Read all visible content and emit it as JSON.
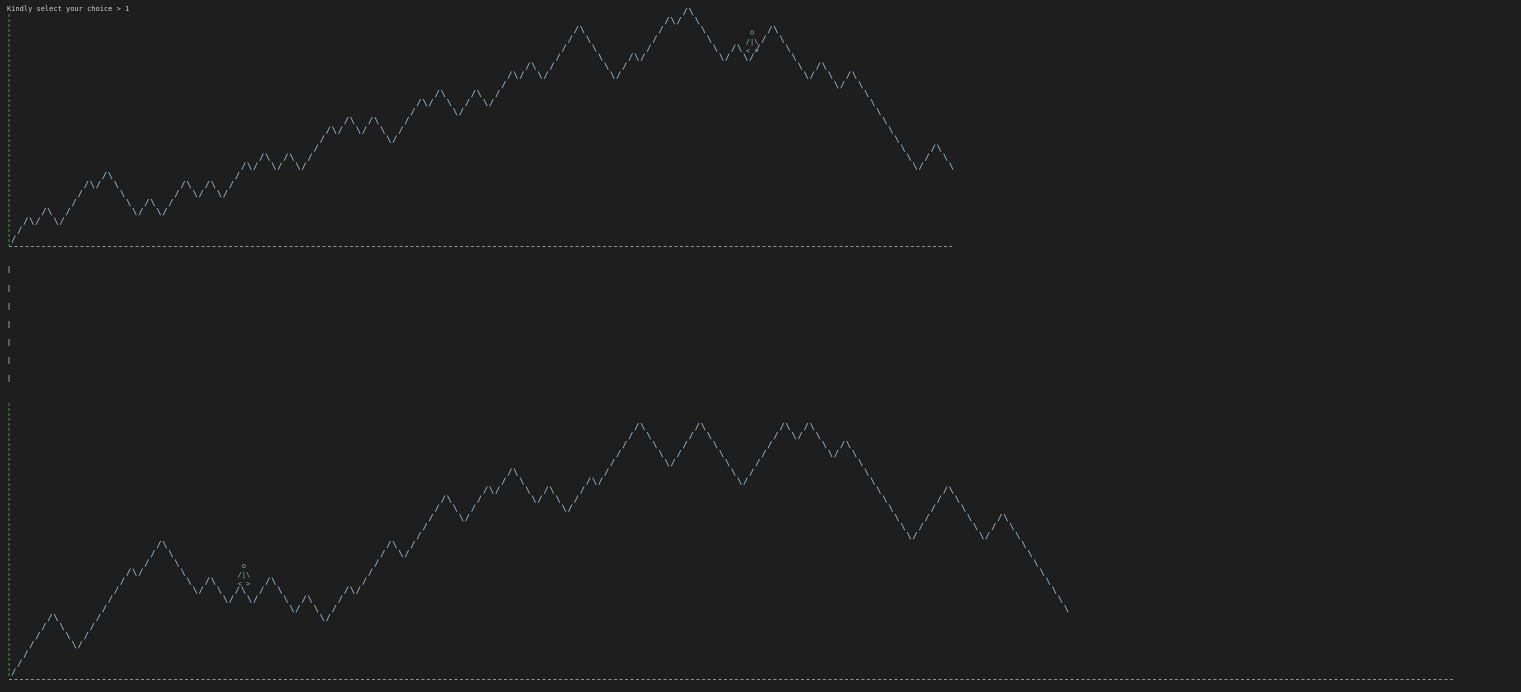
{
  "terminal": {
    "prompt_text": "Kindly select your choice > 1",
    "background": "#1e1e1e",
    "foreground": "#cccccc",
    "stroke_color": "#a6c0d6",
    "axis_color": "#5a8a52"
  },
  "mountain_top": {
    "steps": [
      1,
      1,
      1,
      -1,
      1,
      1,
      -1,
      -1,
      1,
      1,
      1,
      1,
      1,
      -1,
      1,
      1,
      -1,
      -1,
      -1,
      -1,
      -1,
      1,
      1,
      -1,
      -1,
      1,
      1,
      1,
      1,
      -1,
      -1,
      1,
      1,
      -1,
      -1,
      1,
      1,
      1,
      1,
      -1,
      1,
      1,
      -1,
      -1,
      1,
      1,
      -1,
      -1,
      1,
      1,
      1,
      1,
      1,
      -1,
      1,
      1,
      -1,
      -1,
      1,
      1,
      -1,
      -1,
      -1,
      1,
      1,
      1,
      1,
      1,
      -1,
      1,
      1,
      -1,
      -1,
      -1,
      1,
      1,
      1,
      -1,
      -1,
      1,
      1,
      1,
      1,
      -1,
      1,
      1,
      -1,
      -1,
      1,
      1,
      1,
      1,
      1,
      1,
      -1,
      -1,
      -1,
      -1,
      -1,
      -1,
      1,
      1,
      1,
      -1,
      1,
      1,
      1,
      1,
      1,
      -1,
      1,
      1,
      -1,
      -1,
      -1,
      -1,
      -1,
      -1,
      1,
      1,
      -1,
      -1,
      1,
      1,
      1,
      1,
      -1,
      -1,
      -1,
      -1,
      -1,
      -1,
      1,
      1,
      -1,
      -1,
      -1,
      1,
      1,
      -1,
      -1,
      -1,
      -1,
      -1,
      -1,
      -1,
      -1,
      -1,
      -1,
      -1,
      1,
      1,
      1,
      -1,
      -1,
      -1
    ],
    "walker": {
      "head": "o",
      "body": "/|\\",
      "legs": "< >",
      "step_index": 122
    }
  },
  "mountain_bottom": {
    "steps": [
      1,
      1,
      1,
      1,
      1,
      1,
      1,
      -1,
      -1,
      -1,
      -1,
      1,
      1,
      1,
      1,
      1,
      1,
      1,
      1,
      1,
      -1,
      1,
      1,
      1,
      1,
      -1,
      -1,
      -1,
      -1,
      -1,
      -1,
      1,
      1,
      -1,
      -1,
      -1,
      1,
      1,
      -1,
      -1,
      1,
      1,
      1,
      -1,
      -1,
      -1,
      -1,
      1,
      1,
      -1,
      -1,
      -1,
      1,
      1,
      1,
      1,
      -1,
      1,
      1,
      1,
      1,
      1,
      1,
      -1,
      -1,
      1,
      1,
      1,
      1,
      1,
      1,
      1,
      -1,
      -1,
      -1,
      1,
      1,
      1,
      1,
      -1,
      1,
      1,
      1,
      -1,
      -1,
      -1,
      -1,
      1,
      1,
      -1,
      -1,
      -1,
      1,
      1,
      1,
      1,
      -1,
      1,
      1,
      1,
      1,
      1,
      1,
      1,
      -1,
      -1,
      -1,
      -1,
      -1,
      1,
      1,
      1,
      1,
      1,
      -1,
      -1,
      -1,
      -1,
      -1,
      -1,
      -1,
      1,
      1,
      1,
      1,
      1,
      1,
      1,
      -1,
      -1,
      1,
      1,
      -1,
      -1,
      -1,
      -1,
      1,
      1,
      -1,
      -1,
      -1,
      -1,
      -1,
      -1,
      -1,
      -1,
      -1,
      -1,
      -1,
      1,
      1,
      1,
      1,
      1,
      1,
      -1,
      -1,
      -1,
      -1,
      -1,
      -1,
      1,
      1,
      1,
      -1,
      -1,
      -1,
      -1,
      -1,
      -1,
      -1,
      -1,
      -1,
      -1,
      -1
    ],
    "walker": {
      "head": "o",
      "body": "/|\\",
      "legs": "< >",
      "step_index": 38
    }
  }
}
